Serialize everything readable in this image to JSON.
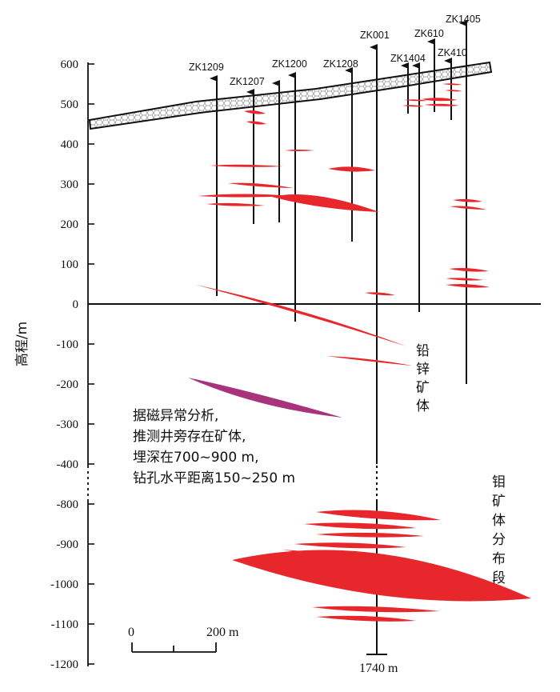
{
  "y_axis": {
    "label": "高程/m",
    "ticks_upper": [
      "600",
      "500",
      "400",
      "300",
      "200",
      "100",
      "0",
      "-100",
      "-200",
      "-300",
      "-400"
    ],
    "ticks_lower": [
      "-800",
      "-900",
      "-1000",
      "-1100",
      "-1200"
    ]
  },
  "drillholes": [
    {
      "name": "ZK1209"
    },
    {
      "name": "ZK1207"
    },
    {
      "name": "ZK1200"
    },
    {
      "name": "ZK1208"
    },
    {
      "name": "ZK001"
    },
    {
      "name": "ZK1404"
    },
    {
      "name": "ZK610"
    },
    {
      "name": "ZK410"
    },
    {
      "name": "ZK1405"
    }
  ],
  "annotation": [
    "据磁异常分析,",
    "推测井旁存在矿体,",
    "埋深在700~900 m,",
    "钻孔水平距离150~250 m"
  ],
  "zones": {
    "pb_zn": [
      "铅",
      "锌",
      "矿",
      "体"
    ],
    "mo": [
      "钼",
      "矿",
      "体",
      "分",
      "布",
      "段"
    ]
  },
  "scale_bar": {
    "start": "0",
    "end": "200 m"
  },
  "depth_label": "1740 m",
  "colors": {
    "orebody": "#e8272c",
    "inferred_orebody": "#a8327c",
    "surface_band": "#ffffff"
  }
}
